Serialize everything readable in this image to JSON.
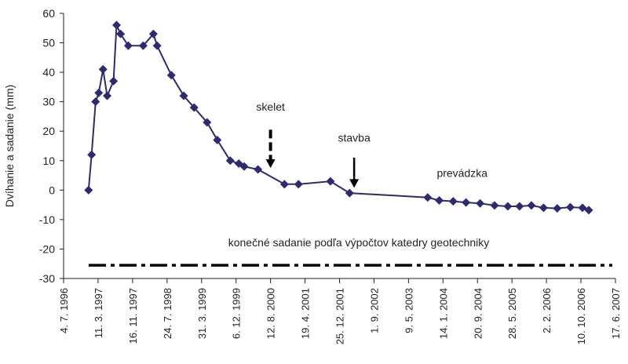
{
  "chart_data": {
    "type": "line",
    "ylabel": "Dvíhanie a sadanie (mm)",
    "xlabel": "",
    "ylim": [
      -30,
      60
    ],
    "yticks": [
      60,
      50,
      40,
      30,
      20,
      10,
      0,
      -10,
      -20,
      -30
    ],
    "xlim": [
      "1996-07-04",
      "2007-06-17"
    ],
    "xticks": [
      "4. 7. 1996",
      "11. 3. 1997",
      "16. 11. 1997",
      "24. 7. 1998",
      "31. 3. 1999",
      "6. 12. 1999",
      "12. 8. 2000",
      "19. 4. 2001",
      "25. 12. 2001",
      "1. 9. 2002",
      "9. 5. 2003",
      "14. 1. 2004",
      "20. 9. 2004",
      "28. 5. 2005",
      "2. 2. 2006",
      "10. 10. 2006",
      "17. 6. 2007"
    ],
    "grid": false,
    "legend": "none",
    "series": [
      {
        "color": "#2e2a6e",
        "marker": "diamond",
        "x": [
          "1997-01-01",
          "1997-01-23",
          "1997-02-21",
          "1997-03-16",
          "1997-04-16",
          "1997-05-16",
          "1997-07-01",
          "1997-07-23",
          "1997-08-21",
          "1997-10-16",
          "1998-02-01",
          "1998-04-16",
          "1998-05-13",
          "1998-08-24",
          "1998-11-22",
          "1999-02-05",
          "1999-05-10",
          "1999-07-23",
          "1999-10-25",
          "1999-12-26",
          "2000-02-03",
          "2000-05-13",
          "2000-11-21",
          "2001-03-03",
          "2001-10-20",
          "2002-03-08",
          "2003-09-25",
          "2003-12-18",
          "2004-03-28",
          "2004-06-29",
          "2004-10-09",
          "2005-01-22",
          "2005-04-28",
          "2005-07-22",
          "2005-10-16",
          "2006-01-12",
          "2006-04-21",
          "2006-07-25",
          "2006-10-21",
          "2006-12-06"
        ],
        "values": [
          0,
          12,
          30,
          33,
          41,
          32,
          37,
          56,
          53,
          49,
          49,
          53,
          49,
          39,
          32,
          28,
          23,
          17,
          10,
          9,
          8,
          7,
          2,
          2,
          3,
          -1,
          -2.5,
          -3.5,
          -3.8,
          -4.2,
          -4.5,
          -5.2,
          -5.5,
          -5.5,
          -5.2,
          -6,
          -6.2,
          -5.8,
          -6,
          -6.8
        ]
      }
    ],
    "reference_line": {
      "label": "konečné sadanie podľa výpočtov katedry geotechniky",
      "value": -25.5,
      "style": "dash-dot"
    },
    "annotations": [
      {
        "text": "skelet",
        "date": "2000-08-12",
        "y_text": 27,
        "arrow_from": 20.5,
        "arrow_to": 7.5,
        "style": "dashed"
      },
      {
        "text": "stavba",
        "date": "2002-04-10",
        "y_text": 16.5,
        "arrow_from": 11,
        "arrow_to": 0.8,
        "style": "solid"
      },
      {
        "text": "prevádzka",
        "date": "2004-06-01",
        "y_text": 4.5
      }
    ]
  }
}
